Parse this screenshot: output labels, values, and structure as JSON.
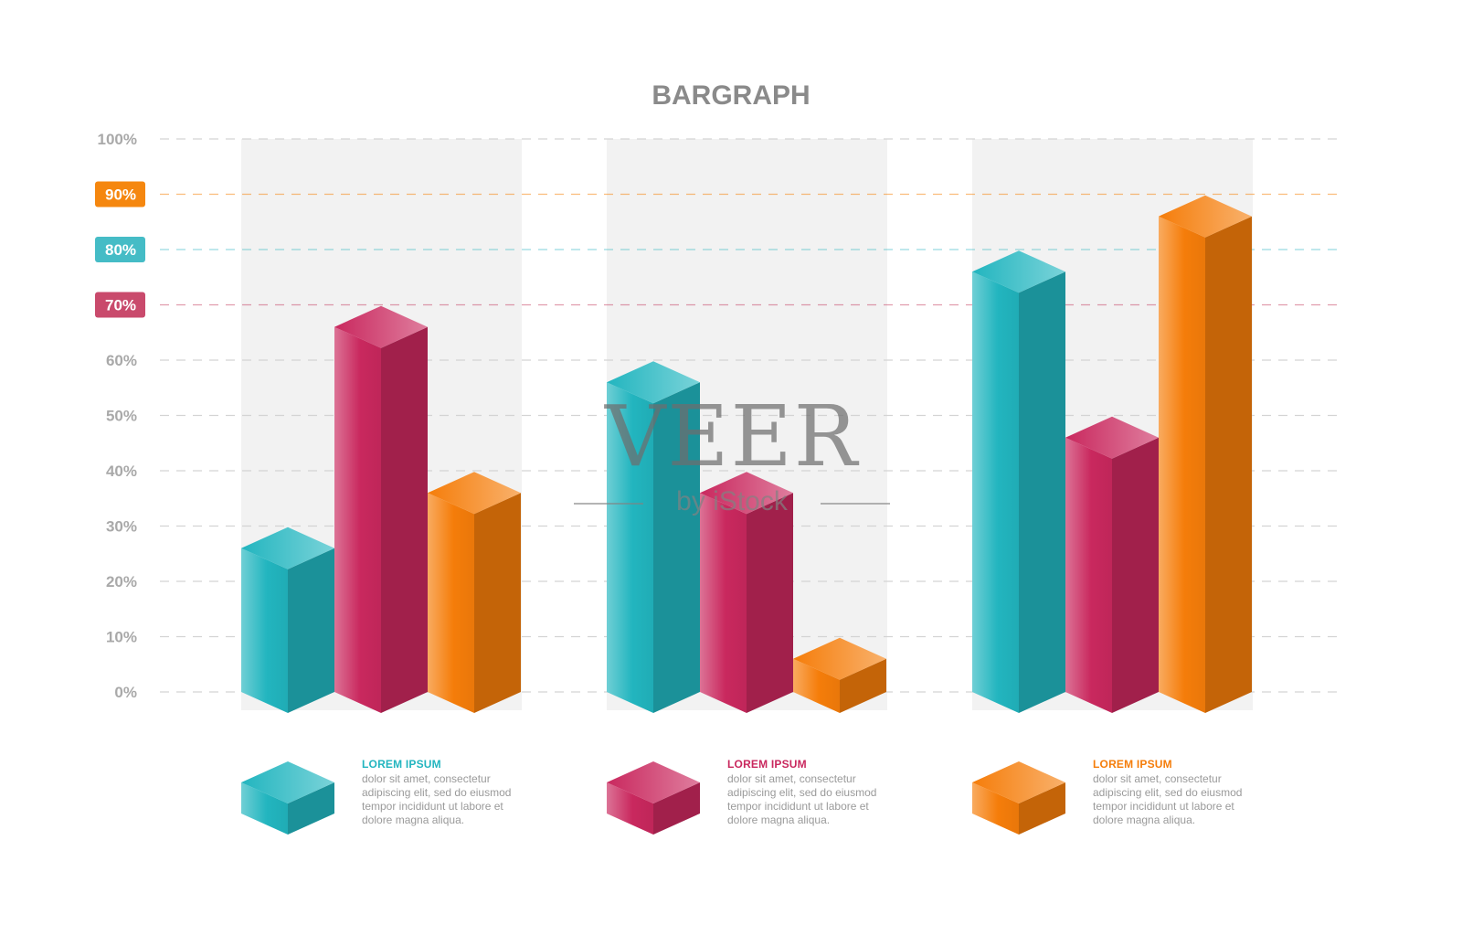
{
  "chart_data": {
    "type": "bar",
    "title": "BARGRAPH",
    "categories": [
      "",
      "",
      ""
    ],
    "series": [
      {
        "name": "LOREM IPSUM",
        "color": "#22b5bf",
        "values": [
          26,
          56,
          76
        ]
      },
      {
        "name": "LOREM IPSUM",
        "color": "#c9285e",
        "values": [
          66,
          36,
          46
        ]
      },
      {
        "name": "LOREM IPSUM",
        "color": "#f57d0a",
        "values": [
          36,
          6,
          86
        ]
      }
    ],
    "ylim": [
      0,
      100
    ],
    "yticks": [
      "0%",
      "10%",
      "20%",
      "30%",
      "40%",
      "50%",
      "60%",
      "70%",
      "80%",
      "90%",
      "100%"
    ],
    "highlighted_ticks": [
      {
        "label": "70%",
        "value": 70,
        "color": "#c94a6c"
      },
      {
        "label": "80%",
        "value": 80,
        "color": "#45bcc6"
      },
      {
        "label": "90%",
        "value": 90,
        "color": "#f5870f"
      }
    ],
    "grid": true,
    "legend_position": "bottom"
  },
  "legend": [
    {
      "title": "LOREM IPSUM",
      "color": "#22b5bf",
      "desc": "dolor sit amet, consectetur adipiscing elit, sed do eiusmod tempor incididunt ut labore et dolore magna aliqua."
    },
    {
      "title": "LOREM IPSUM",
      "color": "#c9285e",
      "desc": "dolor sit amet, consectetur adipiscing elit, sed do eiusmod tempor incididunt ut labore et dolore magna aliqua."
    },
    {
      "title": "LOREM IPSUM",
      "color": "#f57d0a",
      "desc": "dolor sit amet, consectetur adipiscing elit, sed do eiusmod tempor incididunt ut labore et dolore magna aliqua."
    }
  ],
  "watermark": {
    "main": "VEER",
    "sub": "by iStock"
  },
  "colors": {
    "text_gray": "#8a8a8a",
    "grid": "#d4d4d4",
    "panel": "#f2f2f2"
  }
}
